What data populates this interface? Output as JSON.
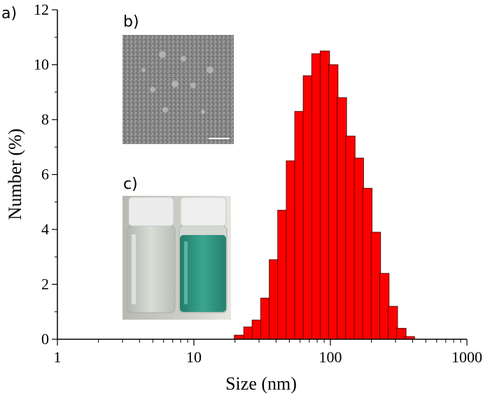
{
  "chart_data": {
    "type": "bar",
    "xlabel": "Size (nm)",
    "ylabel": "Number (%)",
    "xscale": "log",
    "xlim": [
      1,
      1000
    ],
    "ylim": [
      0,
      12
    ],
    "xticks": [
      {
        "v": 1,
        "label": "1"
      },
      {
        "v": 10,
        "label": "10"
      },
      {
        "v": 100,
        "label": "100"
      },
      {
        "v": 1000,
        "label": "1000"
      }
    ],
    "yticks": [
      {
        "v": 0,
        "label": "0"
      },
      {
        "v": 2,
        "label": "2"
      },
      {
        "v": 4,
        "label": "4"
      },
      {
        "v": 6,
        "label": "6"
      },
      {
        "v": 8,
        "label": "8"
      },
      {
        "v": 10,
        "label": "10"
      },
      {
        "v": 12,
        "label": "12"
      }
    ],
    "bar_color": "#ff0000",
    "bars": [
      {
        "x": 21.4,
        "y": 0.15
      },
      {
        "x": 25.1,
        "y": 0.45
      },
      {
        "x": 28.9,
        "y": 0.7
      },
      {
        "x": 33.4,
        "y": 1.5
      },
      {
        "x": 38.6,
        "y": 2.9
      },
      {
        "x": 44.5,
        "y": 4.7
      },
      {
        "x": 51.4,
        "y": 6.5
      },
      {
        "x": 59.3,
        "y": 8.3
      },
      {
        "x": 68.4,
        "y": 9.6
      },
      {
        "x": 79.0,
        "y": 10.4
      },
      {
        "x": 91.1,
        "y": 10.5
      },
      {
        "x": 105.0,
        "y": 10.0
      },
      {
        "x": 121.4,
        "y": 8.8
      },
      {
        "x": 140.1,
        "y": 7.4
      },
      {
        "x": 161.7,
        "y": 6.6
      },
      {
        "x": 186.6,
        "y": 5.5
      },
      {
        "x": 215.4,
        "y": 3.9
      },
      {
        "x": 248.6,
        "y": 2.4
      },
      {
        "x": 286.9,
        "y": 1.2
      },
      {
        "x": 331.1,
        "y": 0.4
      },
      {
        "x": 382.1,
        "y": 0.1
      }
    ],
    "panel_labels": [
      "a)",
      "b)",
      "c)"
    ]
  },
  "colors": {
    "axis": "#000000",
    "bar_edge": "#3a0000",
    "sem_bg": "#8a8a8a",
    "vial_liquid_green": "#2f9c86",
    "vial_liquid_clear": "#c9cfc9",
    "cap": "#eeeeee"
  }
}
